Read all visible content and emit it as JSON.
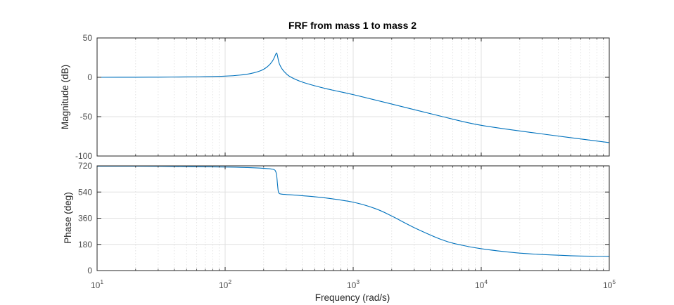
{
  "figure": {
    "title": "FRF from mass 1 to mass 2",
    "xlabel": "Frequency  (rad/s)"
  },
  "chart_data": [
    {
      "type": "line",
      "title": "FRF from mass 1 to mass 2",
      "xlabel": "Frequency  (rad/s)",
      "ylabel": "Magnitude (dB)",
      "xscale": "log",
      "xlim": [
        10,
        100000
      ],
      "ylim": [
        -100,
        50
      ],
      "xticks": [
        10,
        100,
        1000,
        10000,
        100000
      ],
      "xtick_labels": [
        {
          "base": "10",
          "exp": "1"
        },
        {
          "base": "10",
          "exp": "2"
        },
        {
          "base": "10",
          "exp": "3"
        },
        {
          "base": "10",
          "exp": "4"
        },
        {
          "base": "10",
          "exp": "5"
        }
      ],
      "yticks": [
        -100,
        -50,
        0,
        50
      ],
      "ytick_labels": [
        "-100",
        "-50",
        "0",
        "50"
      ],
      "grid": true,
      "series": [
        {
          "color": "#0072bd",
          "x": [
            10,
            20,
            30,
            50,
            70,
            100,
            130,
            160,
            190,
            210,
            225,
            235,
            242,
            248,
            252,
            255,
            258,
            262,
            267,
            275,
            290,
            320,
            400,
            600,
            1000,
            2000,
            5000,
            10000,
            30000,
            100000
          ],
          "y": [
            0,
            0.1,
            0.2,
            0.5,
            0.8,
            1.5,
            2.8,
            5.0,
            8.5,
            12.5,
            17,
            21,
            25,
            29,
            31,
            29,
            25,
            20,
            16,
            12,
            7,
            1,
            -6,
            -14,
            -22,
            -34,
            -50,
            -61,
            -72,
            -83
          ]
        }
      ]
    },
    {
      "type": "line",
      "ylabel": "Phase (deg)",
      "xscale": "log",
      "xlim": [
        10,
        100000
      ],
      "ylim": [
        0,
        720
      ],
      "xticks": [
        10,
        100,
        1000,
        10000,
        100000
      ],
      "yticks": [
        0,
        180,
        360,
        540,
        720
      ],
      "ytick_labels": [
        "0",
        "180",
        "360",
        "540",
        "720"
      ],
      "grid": true,
      "series": [
        {
          "color": "#0072bd",
          "x": [
            10,
            30,
            100,
            150,
            200,
            230,
            245,
            252,
            256,
            260,
            265,
            275,
            300,
            400,
            600,
            1000,
            1500,
            2000,
            3000,
            5000,
            7000,
            10000,
            20000,
            50000,
            100000
          ],
          "y": [
            718,
            717,
            712,
            708,
            703,
            698,
            690,
            660,
            600,
            545,
            530,
            526,
            523,
            515,
            500,
            470,
            425,
            375,
            295,
            210,
            175,
            150,
            120,
            102,
            98
          ]
        }
      ]
    }
  ]
}
